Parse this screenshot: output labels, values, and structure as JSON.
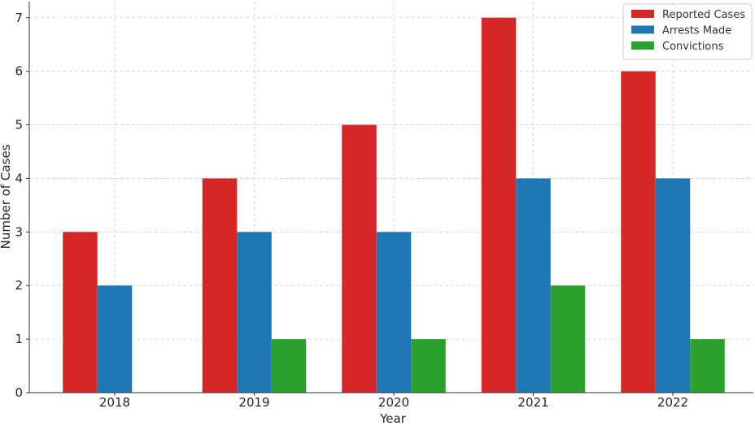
{
  "chart_data": {
    "type": "bar",
    "title": "",
    "xlabel": "Year",
    "ylabel": "Number of Cases",
    "categories": [
      "2018",
      "2019",
      "2020",
      "2021",
      "2022"
    ],
    "series": [
      {
        "name": "Reported Cases",
        "values": [
          3,
          4,
          5,
          7,
          6
        ],
        "color": "#d62728"
      },
      {
        "name": "Arrests Made",
        "values": [
          2,
          3,
          3,
          4,
          4
        ],
        "color": "#1f77b4"
      },
      {
        "name": "Convictions",
        "values": [
          0,
          1,
          1,
          2,
          1
        ],
        "color": "#2ca02c"
      }
    ],
    "ylim": [
      0,
      7.3
    ],
    "yticks": [
      "0",
      "1",
      "2",
      "3",
      "4",
      "5",
      "6",
      "7"
    ],
    "grid": true,
    "legend_position": "top-right"
  }
}
